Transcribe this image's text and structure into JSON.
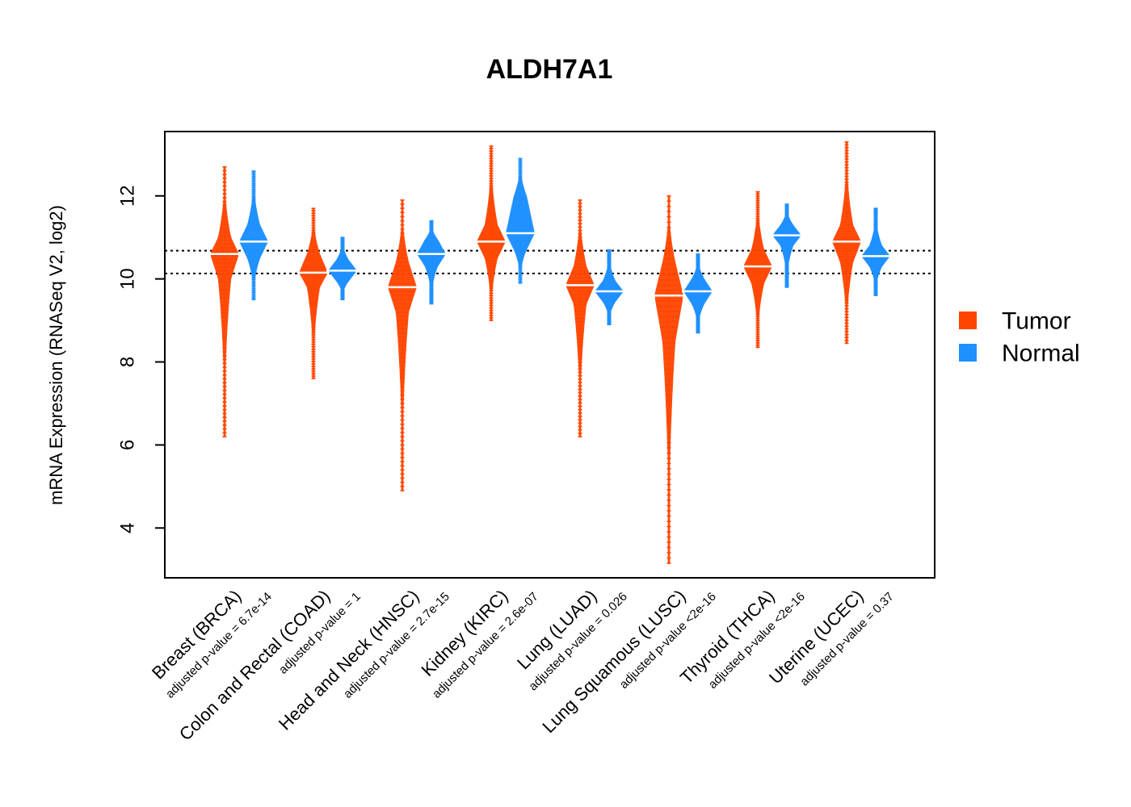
{
  "chart_data": {
    "type": "violin",
    "title": "ALDH7A1",
    "xlabel": "",
    "ylabel": "mRNA Expression (RNASeq V2, log2)",
    "ylim": [
      2.8,
      13.55
    ],
    "yticks": [
      4,
      6,
      8,
      10,
      12
    ],
    "reference_lines": [
      10.13,
      10.68
    ],
    "legend": {
      "placement": "right",
      "entries": [
        {
          "label": "Tumor",
          "color": "#FF4500"
        },
        {
          "label": "Normal",
          "color": "#1E90FF"
        }
      ]
    },
    "categories": [
      {
        "label": "Breast (BRCA)",
        "pvalue": "adjusted p-value = 6.7e-14",
        "tumor": {
          "median": 10.6,
          "min": 6.2,
          "max": 12.7,
          "q1": 10.0,
          "q3": 11.0
        },
        "normal": {
          "median": 10.9,
          "min": 9.5,
          "max": 12.6,
          "q1": 10.5,
          "q3": 11.3
        }
      },
      {
        "label": "Colon and Rectal (COAD)",
        "pvalue": "adjusted p-value = 1",
        "tumor": {
          "median": 10.15,
          "min": 7.6,
          "max": 11.7,
          "q1": 9.8,
          "q3": 10.6
        },
        "normal": {
          "median": 10.2,
          "min": 9.5,
          "max": 11.0,
          "q1": 9.95,
          "q3": 10.45
        }
      },
      {
        "label": "Head and Neck (HNSC)",
        "pvalue": "adjusted p-value = 2.7e-15",
        "tumor": {
          "median": 9.8,
          "min": 4.9,
          "max": 11.9,
          "q1": 9.2,
          "q3": 10.4
        },
        "normal": {
          "median": 10.6,
          "min": 9.4,
          "max": 11.4,
          "q1": 10.3,
          "q3": 10.95
        }
      },
      {
        "label": "Kidney (KIRC)",
        "pvalue": "adjusted p-value = 2.6e-07",
        "tumor": {
          "median": 10.9,
          "min": 9.0,
          "max": 13.2,
          "q1": 10.5,
          "q3": 11.3
        },
        "normal": {
          "median": 11.1,
          "min": 9.9,
          "max": 12.9,
          "q1": 10.7,
          "q3": 12.0
        }
      },
      {
        "label": "Lung (LUAD)",
        "pvalue": "adjusted p-value = 0.026",
        "tumor": {
          "median": 9.85,
          "min": 6.2,
          "max": 11.9,
          "q1": 9.4,
          "q3": 10.3
        },
        "normal": {
          "median": 9.7,
          "min": 8.9,
          "max": 10.7,
          "q1": 9.45,
          "q3": 9.95
        }
      },
      {
        "label": "Lung Squamous (LUSC)",
        "pvalue": "adjusted p-value <2e-16",
        "tumor": {
          "median": 9.6,
          "min": 3.15,
          "max": 12.0,
          "q1": 8.5,
          "q3": 10.4
        },
        "normal": {
          "median": 9.7,
          "min": 8.7,
          "max": 10.6,
          "q1": 9.4,
          "q3": 10.0
        }
      },
      {
        "label": "Thyroid (THCA)",
        "pvalue": "adjusted p-value <2e-16",
        "tumor": {
          "median": 10.3,
          "min": 8.35,
          "max": 12.1,
          "q1": 9.9,
          "q3": 10.7
        },
        "normal": {
          "median": 11.05,
          "min": 9.8,
          "max": 11.8,
          "q1": 10.8,
          "q3": 11.3
        }
      },
      {
        "label": "Uterine (UCEC)",
        "pvalue": "adjusted p-value = 0.37",
        "tumor": {
          "median": 10.9,
          "min": 8.45,
          "max": 13.3,
          "q1": 10.4,
          "q3": 11.3
        },
        "normal": {
          "median": 10.55,
          "min": 9.6,
          "max": 11.7,
          "q1": 10.3,
          "q3": 10.8
        }
      }
    ]
  }
}
